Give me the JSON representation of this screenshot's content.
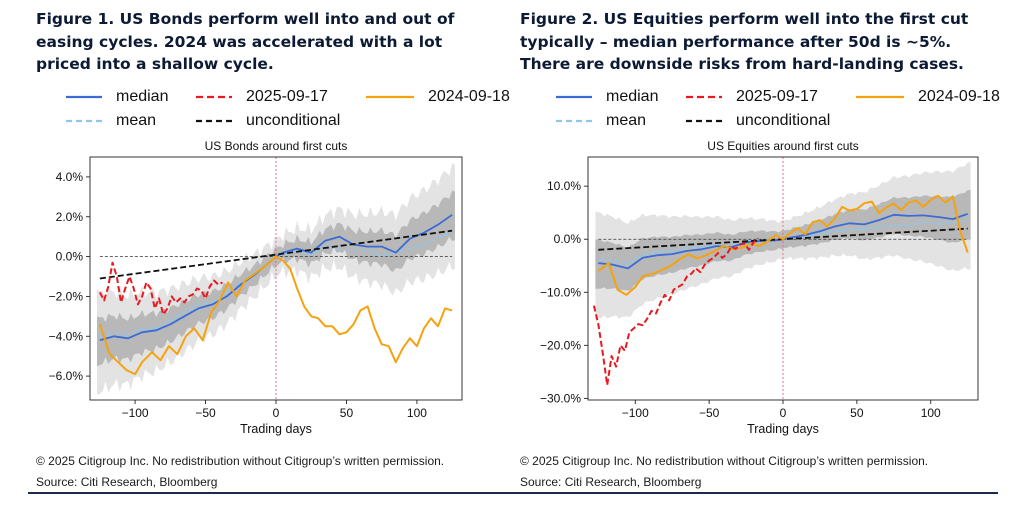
{
  "figure1": {
    "title": "Figure 1. US Bonds perform well into and out of easing cycles. 2024 was accelerated with a lot priced into a shallow cycle.",
    "copyright": "© 2025 Citigroup Inc. No redistribution without Citigroup’s written permission.",
    "source": "Source: Citi Research, Bloomberg",
    "legend": [
      "median",
      "2025-09-17",
      "2024-09-18",
      "mean",
      "unconditional"
    ]
  },
  "figure2": {
    "title": "Figure 2. US Equities perform well into the first cut typically – median performance after 50d is ~5%. There are downside risks from hard-landing cases.",
    "copyright": "© 2025 Citigroup Inc. No redistribution without Citigroup’s written permission.",
    "source": "Source: Citi Research, Bloomberg",
    "legend": [
      "median",
      "2025-09-17",
      "2024-09-18",
      "mean",
      "unconditional"
    ]
  },
  "colors": {
    "median": "#3b6bd6",
    "recent": "#e8191f",
    "y2024": "#f5a20f",
    "mean": "#8ec7ee",
    "unconditional": "#111111",
    "band_outer": "#e3e3e3",
    "band_inner": "#b8b8b8",
    "cut_line": "#f06478"
  },
  "chart_data": [
    {
      "type": "line",
      "title": "US Bonds around first cuts",
      "xlabel": "Trading days",
      "ylabel": "",
      "xlim": [
        -132,
        132
      ],
      "ylim": [
        -7.2,
        5.0
      ],
      "xticks": [
        -100,
        -50,
        0,
        50,
        100
      ],
      "xtick_labels": [
        "−100",
        "−50",
        "0",
        "50",
        "100"
      ],
      "yticks": [
        4,
        2,
        0,
        -2,
        -4,
        -6
      ],
      "ytick_labels": [
        "4.0%",
        "2.0%",
        "0.0%",
        "−2.0%",
        "−4.0%",
        "−6.0%"
      ],
      "vline_x": 0,
      "hline_y": 0,
      "series": [
        {
          "name": "median",
          "x": [
            -125,
            -115,
            -105,
            -95,
            -85,
            -75,
            -65,
            -55,
            -45,
            -35,
            -25,
            -15,
            -5,
            0,
            5,
            15,
            25,
            35,
            45,
            55,
            65,
            75,
            85,
            95,
            105,
            115,
            125
          ],
          "values": [
            -4.2,
            -4.0,
            -4.1,
            -3.8,
            -3.7,
            -3.4,
            -3.0,
            -2.6,
            -2.4,
            -2.0,
            -1.4,
            -0.9,
            -0.3,
            0.0,
            0.2,
            0.4,
            0.2,
            0.8,
            1.0,
            0.6,
            0.5,
            0.5,
            0.2,
            0.9,
            1.2,
            1.6,
            2.1
          ]
        },
        {
          "name": "mean",
          "x": [
            -125,
            -115,
            -105,
            -95,
            -85,
            -75,
            -65,
            -55,
            -45,
            -35,
            -25,
            -15,
            -5,
            0,
            5,
            15,
            25,
            35,
            45,
            55,
            65,
            75,
            85,
            95,
            105,
            115,
            125
          ],
          "values": [
            -4.0,
            -3.8,
            -3.9,
            -3.6,
            -3.6,
            -3.2,
            -2.8,
            -2.4,
            -2.3,
            -1.8,
            -1.3,
            -0.8,
            -0.3,
            0.0,
            0.1,
            0.3,
            0.1,
            0.5,
            0.4,
            0.3,
            0.3,
            0.0,
            0.2,
            0.4,
            0.6,
            1.0,
            1.2
          ]
        },
        {
          "name": "2025-09-17",
          "x": [
            -125,
            -122,
            -119,
            -116,
            -113,
            -110,
            -107,
            -104,
            -101,
            -98,
            -95,
            -92,
            -89,
            -86,
            -83,
            -80,
            -77,
            -74,
            -71,
            -68,
            -65,
            -62,
            -59,
            -56,
            -53,
            -50,
            -47,
            -44,
            -41,
            -38
          ],
          "values": [
            -1.8,
            -2.2,
            -1.5,
            -0.3,
            -1.0,
            -2.3,
            -1.6,
            -1.0,
            -1.6,
            -2.4,
            -2.0,
            -1.3,
            -1.6,
            -2.6,
            -2.1,
            -2.9,
            -2.6,
            -2.0,
            -2.3,
            -2.1,
            -2.3,
            -2.0,
            -1.9,
            -1.6,
            -1.7,
            -2.1,
            -1.5,
            -1.2,
            -1.4,
            -1.3
          ]
        },
        {
          "name": "2024-09-18",
          "x": [
            -125,
            -118,
            -112,
            -106,
            -100,
            -95,
            -88,
            -82,
            -76,
            -70,
            -64,
            -58,
            -52,
            -46,
            -40,
            -34,
            -28,
            -22,
            -16,
            -10,
            -5,
            0,
            5,
            10,
            15,
            20,
            25,
            30,
            35,
            40,
            45,
            50,
            55,
            60,
            65,
            70,
            75,
            80,
            85,
            90,
            95,
            100,
            105,
            110,
            115,
            120,
            125
          ],
          "values": [
            -3.4,
            -4.9,
            -5.3,
            -5.7,
            -5.9,
            -5.3,
            -4.8,
            -5.2,
            -4.5,
            -4.9,
            -4.0,
            -3.6,
            -4.2,
            -2.8,
            -2.2,
            -1.3,
            -2.0,
            -1.2,
            -0.9,
            -0.6,
            -0.3,
            0.0,
            -0.2,
            -0.6,
            -1.6,
            -2.5,
            -3.0,
            -3.1,
            -3.5,
            -3.5,
            -3.9,
            -3.8,
            -3.4,
            -2.7,
            -2.5,
            -3.6,
            -4.4,
            -4.5,
            -5.3,
            -4.6,
            -4.1,
            -4.5,
            -3.6,
            -3.1,
            -3.5,
            -2.6,
            -2.7
          ]
        },
        {
          "name": "unconditional",
          "x": [
            -125,
            125
          ],
          "values": [
            -1.1,
            1.3
          ]
        }
      ]
    },
    {
      "type": "line",
      "title": "US Equities around first cuts",
      "xlabel": "Trading days",
      "ylabel": "",
      "xlim": [
        -132,
        132
      ],
      "ylim": [
        -30.3,
        15.5
      ],
      "xticks": [
        -100,
        -50,
        0,
        50,
        100
      ],
      "xtick_labels": [
        "−100",
        "−50",
        "0",
        "50",
        "100"
      ],
      "yticks": [
        10,
        0,
        -10,
        -20,
        -30
      ],
      "ytick_labels": [
        "10.0%",
        "0.0%",
        "−10.0%",
        "−20.0%",
        "−30.0%"
      ],
      "vline_x": 0,
      "hline_y": 0,
      "series": [
        {
          "name": "median",
          "x": [
            -125,
            -115,
            -105,
            -95,
            -85,
            -75,
            -65,
            -55,
            -45,
            -35,
            -25,
            -15,
            -5,
            0,
            5,
            15,
            25,
            35,
            45,
            55,
            65,
            75,
            85,
            95,
            105,
            115,
            125
          ],
          "values": [
            -4.5,
            -4.8,
            -5.5,
            -3.5,
            -3.0,
            -2.8,
            -2.2,
            -1.9,
            -1.3,
            -1.5,
            -0.6,
            -0.3,
            -0.2,
            0.0,
            0.3,
            0.8,
            1.5,
            2.4,
            3.0,
            2.8,
            3.6,
            4.6,
            4.4,
            4.5,
            4.2,
            3.8,
            4.8
          ]
        },
        {
          "name": "mean",
          "x": [
            -125,
            -115,
            -105,
            -95,
            -85,
            -75,
            -65,
            -55,
            -45,
            -35,
            -25,
            -15,
            -5,
            0,
            5,
            15,
            25,
            35,
            45,
            55,
            65,
            75,
            85,
            95,
            105,
            115,
            125
          ],
          "values": [
            -3.8,
            -4.0,
            -4.5,
            -3.0,
            -2.4,
            -2.2,
            -1.6,
            -1.4,
            -1.0,
            -1.1,
            -0.4,
            -0.2,
            -0.1,
            0.0,
            0.2,
            0.5,
            1.0,
            1.5,
            1.8,
            1.9,
            2.3,
            2.6,
            2.7,
            3.2,
            2.9,
            3.1,
            3.6
          ]
        },
        {
          "name": "2025-09-17",
          "x": [
            -128,
            -125,
            -122,
            -119,
            -116,
            -113,
            -110,
            -107,
            -104,
            -101,
            -98,
            -95,
            -92,
            -89,
            -86,
            -83,
            -80,
            -77,
            -74,
            -71,
            -68,
            -65,
            -62,
            -59,
            -56,
            -53,
            -50,
            -47,
            -44,
            -41,
            -38,
            -35,
            -32,
            -29,
            -26,
            -23,
            -20,
            -17
          ],
          "values": [
            -12.5,
            -16.0,
            -21.5,
            -27.5,
            -22.0,
            -24.0,
            -20.0,
            -21.0,
            -17.5,
            -16.8,
            -16.0,
            -16.2,
            -15.0,
            -13.5,
            -14.0,
            -12.0,
            -10.5,
            -11.5,
            -9.5,
            -9.0,
            -8.5,
            -7.0,
            -6.5,
            -5.5,
            -6.2,
            -4.8,
            -4.0,
            -3.5,
            -2.6,
            -3.5,
            -2.8,
            -1.4,
            -1.8,
            -1.0,
            -0.8,
            -2.0,
            -0.6,
            0.2
          ]
        },
        {
          "name": "2024-09-18",
          "x": [
            -125,
            -118,
            -112,
            -106,
            -100,
            -95,
            -88,
            -82,
            -76,
            -70,
            -64,
            -58,
            -52,
            -46,
            -40,
            -34,
            -28,
            -22,
            -16,
            -10,
            -5,
            0,
            5,
            10,
            15,
            20,
            25,
            30,
            35,
            40,
            45,
            50,
            55,
            60,
            65,
            70,
            75,
            80,
            85,
            90,
            95,
            100,
            105,
            110,
            115,
            120,
            125
          ],
          "values": [
            -6.0,
            -4.5,
            -9.5,
            -10.5,
            -9.0,
            -7.0,
            -6.5,
            -5.8,
            -5.0,
            -3.8,
            -2.8,
            -3.6,
            -3.0,
            -2.2,
            -1.2,
            -1.9,
            -1.6,
            -0.8,
            -1.3,
            -0.3,
            0.8,
            0.0,
            1.2,
            2.1,
            0.9,
            3.2,
            3.6,
            2.4,
            3.9,
            6.1,
            5.4,
            5.7,
            6.8,
            7.1,
            4.9,
            6.0,
            6.7,
            5.5,
            6.9,
            7.3,
            6.1,
            7.4,
            8.2,
            6.9,
            8.1,
            1.5,
            -2.5
          ]
        },
        {
          "name": "unconditional",
          "x": [
            -125,
            125
          ],
          "values": [
            -2.0,
            2.0
          ]
        }
      ]
    }
  ]
}
